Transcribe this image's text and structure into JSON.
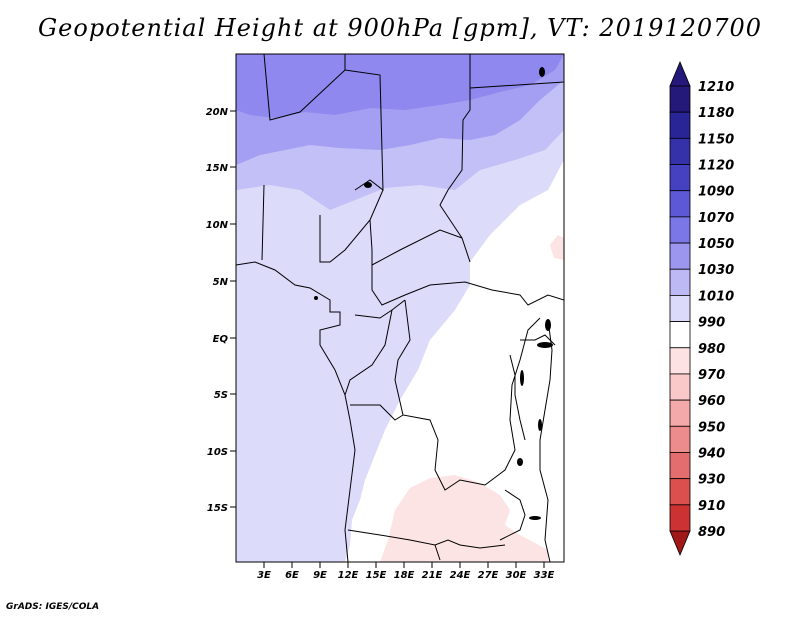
{
  "title": "Geopotential Height at 900hPa [gpm], VT: 2019120700",
  "credit": "GrADS: IGES/COLA",
  "map": {
    "lat_ticks": [
      "20N",
      "15N",
      "10N",
      "5N",
      "EQ",
      "5S",
      "10S",
      "15S"
    ],
    "lon_ticks": [
      "3E",
      "6E",
      "9E",
      "12E",
      "15E",
      "18E",
      "21E",
      "24E",
      "27E",
      "30E",
      "33E"
    ]
  },
  "colorbar": {
    "levels": [
      {
        "label": "1210",
        "color": "#241878"
      },
      {
        "label": "1180",
        "color": "#2a2596"
      },
      {
        "label": "1150",
        "color": "#3531a8"
      },
      {
        "label": "1120",
        "color": "#4541c0"
      },
      {
        "label": "1090",
        "color": "#5d58d6"
      },
      {
        "label": "1070",
        "color": "#7c77e6"
      },
      {
        "label": "1050",
        "color": "#9c96ef"
      },
      {
        "label": "1030",
        "color": "#bdb9f5"
      },
      {
        "label": "1010",
        "color": "#dcdafb"
      },
      {
        "label": "990",
        "color": "#ffffff"
      },
      {
        "label": "980",
        "color": "#fce2e2"
      },
      {
        "label": "970",
        "color": "#f9c8c8"
      },
      {
        "label": "960",
        "color": "#f3a9a9"
      },
      {
        "label": "950",
        "color": "#ec8c8c"
      },
      {
        "label": "940",
        "color": "#e46d6d"
      },
      {
        "label": "930",
        "color": "#dc4f4f"
      },
      {
        "label": "910",
        "color": "#cc3232"
      },
      {
        "label": "890",
        "color": "#b01f1f"
      }
    ],
    "top_arrow_color": "#24187a",
    "bottom_arrow_color": "#a01818"
  },
  "field_colors": {
    "band_1090": "#8f88ee",
    "band_1050": "#a49ff2",
    "band_1030": "#c3bff7",
    "band_1010": "#dddbfa",
    "band_990": "#ffffff",
    "band_980": "#fde4e4"
  }
}
